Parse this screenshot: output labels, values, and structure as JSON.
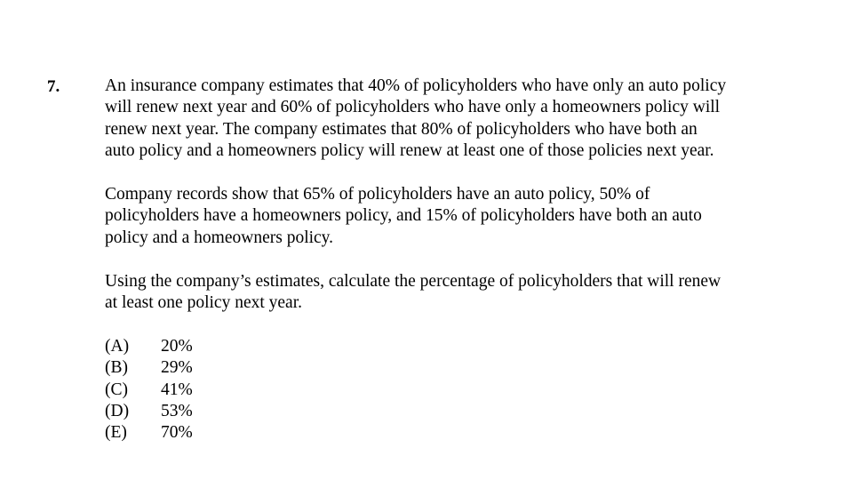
{
  "question": {
    "number": "7.",
    "paragraphs": [
      [
        "An insurance company estimates that 40% of policyholders who have only an auto policy",
        "will renew next year and 60% of policyholders who have only a homeowners policy will",
        "renew next year.  The company estimates that 80% of policyholders who have both an",
        "auto policy and a homeowners policy will renew at least one of those policies next year."
      ],
      [
        "Company records show that 65% of policyholders have an auto policy, 50% of",
        "policyholders have a homeowners policy, and 15% of policyholders have both an auto",
        "policy and a homeowners policy."
      ],
      [
        "Using the company’s estimates, calculate the percentage of policyholders that will renew",
        "at least one policy next year."
      ]
    ],
    "choices": [
      {
        "letter": "(A)",
        "value": "20%"
      },
      {
        "letter": "(B)",
        "value": "29%"
      },
      {
        "letter": "(C)",
        "value": "41%"
      },
      {
        "letter": "(D)",
        "value": "53%"
      },
      {
        "letter": "(E)",
        "value": "70%"
      }
    ]
  }
}
